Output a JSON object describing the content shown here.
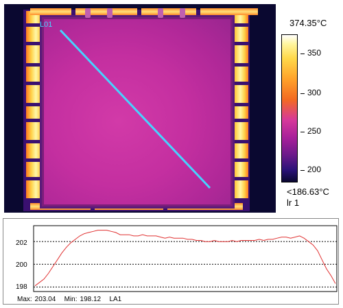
{
  "thermal_image": {
    "line_label": "L01",
    "line_color": "#46d4ff"
  },
  "color_scale": {
    "max_label": "374.35°C",
    "min_label": "<186.63°C",
    "profile_name": "lr 1",
    "ticks": [
      "350",
      "300",
      "250",
      "200"
    ]
  },
  "profile": {
    "y_ticks": [
      "202",
      "200",
      "198"
    ],
    "stats": {
      "max_label": "Max:",
      "max_value": "203.04",
      "min_label": "Min:",
      "min_value": "198.12",
      "area_label": "LA1"
    },
    "line_color": "#e03030",
    "grid": "dotted",
    "values": [
      198.1,
      198.4,
      198.7,
      199.2,
      199.8,
      200.4,
      201.0,
      201.5,
      201.9,
      202.2,
      202.5,
      202.7,
      202.8,
      202.9,
      203.0,
      203.0,
      203.0,
      202.9,
      202.8,
      202.6,
      202.6,
      202.6,
      202.5,
      202.5,
      202.6,
      202.5,
      202.5,
      202.5,
      202.4,
      202.3,
      202.4,
      202.3,
      202.3,
      202.3,
      202.2,
      202.2,
      202.1,
      202.1,
      202.0,
      202.0,
      202.1,
      202.0,
      202.0,
      202.0,
      202.1,
      202.0,
      202.1,
      202.1,
      202.1,
      202.1,
      202.2,
      202.1,
      202.2,
      202.2,
      202.3,
      202.4,
      202.4,
      202.3,
      202.4,
      202.5,
      202.3,
      202.0,
      201.7,
      201.2,
      200.4,
      199.6,
      199.0,
      198.3
    ]
  },
  "colors": {
    "background": "#0a0830",
    "die": "#c42fa0",
    "pads": "#ffd24a"
  }
}
